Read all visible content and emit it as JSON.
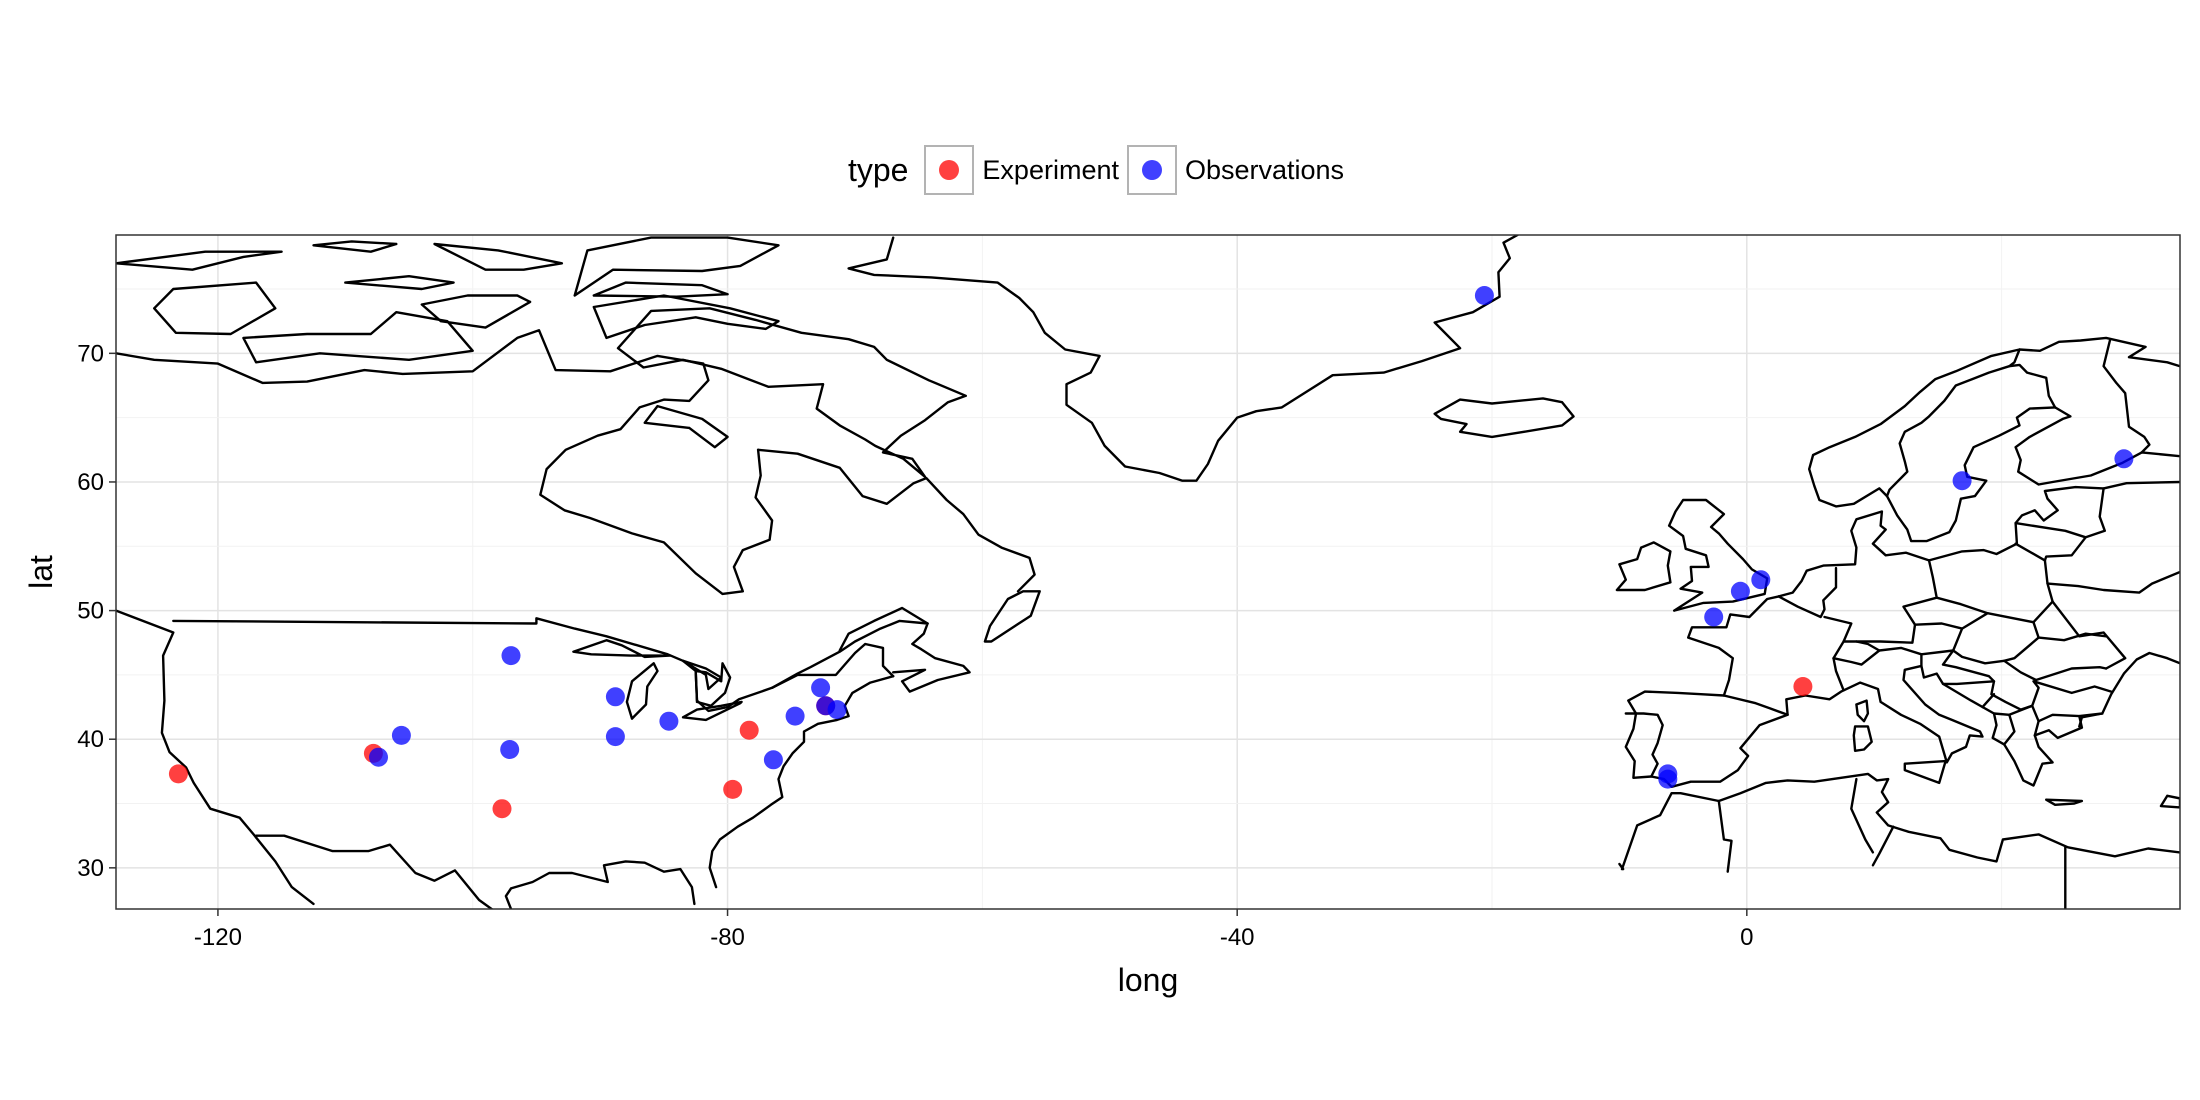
{
  "chart_data": {
    "type": "scatter",
    "xlabel": "long",
    "ylabel": "lat",
    "xlim": [
      -128,
      34
    ],
    "ylim": [
      26.8,
      79.2
    ],
    "x_ticks": [
      -120,
      -80,
      -40,
      0
    ],
    "y_ticks": [
      30,
      40,
      50,
      60,
      70
    ],
    "grid": true,
    "background_map": "world coastlines and country borders (North America, Greenland, Europe)",
    "legend": {
      "title": "type",
      "position": "top",
      "entries": [
        {
          "label": "Experiment",
          "color": "#ff0000"
        },
        {
          "label": "Observations",
          "color": "#0000ff"
        }
      ]
    },
    "series": [
      {
        "name": "Experiment",
        "color": "#ff0000",
        "points": [
          {
            "x": -123.1,
            "y": 37.3
          },
          {
            "x": -107.8,
            "y": 38.9
          },
          {
            "x": -97.7,
            "y": 34.6
          },
          {
            "x": -79.6,
            "y": 36.1
          },
          {
            "x": -78.3,
            "y": 40.7
          },
          {
            "x": -72.3,
            "y": 42.6
          },
          {
            "x": 4.4,
            "y": 44.1
          }
        ]
      },
      {
        "name": "Observations",
        "color": "#0000ff",
        "points": [
          {
            "x": -107.4,
            "y": 38.6
          },
          {
            "x": -105.6,
            "y": 40.3
          },
          {
            "x": -97.0,
            "y": 46.5
          },
          {
            "x": -97.1,
            "y": 39.2
          },
          {
            "x": -88.8,
            "y": 43.3
          },
          {
            "x": -88.8,
            "y": 40.2
          },
          {
            "x": -84.6,
            "y": 41.4
          },
          {
            "x": -76.4,
            "y": 38.4
          },
          {
            "x": -74.7,
            "y": 41.8
          },
          {
            "x": -72.7,
            "y": 44.0
          },
          {
            "x": -72.3,
            "y": 42.6
          },
          {
            "x": -71.4,
            "y": 42.3
          },
          {
            "x": -20.6,
            "y": 74.5
          },
          {
            "x": -6.2,
            "y": 37.3
          },
          {
            "x": -6.2,
            "y": 36.9
          },
          {
            "x": -2.6,
            "y": 49.5
          },
          {
            "x": -0.5,
            "y": 51.5
          },
          {
            "x": 1.1,
            "y": 52.4
          },
          {
            "x": 16.9,
            "y": 60.1
          },
          {
            "x": 29.6,
            "y": 61.8
          }
        ]
      }
    ]
  }
}
